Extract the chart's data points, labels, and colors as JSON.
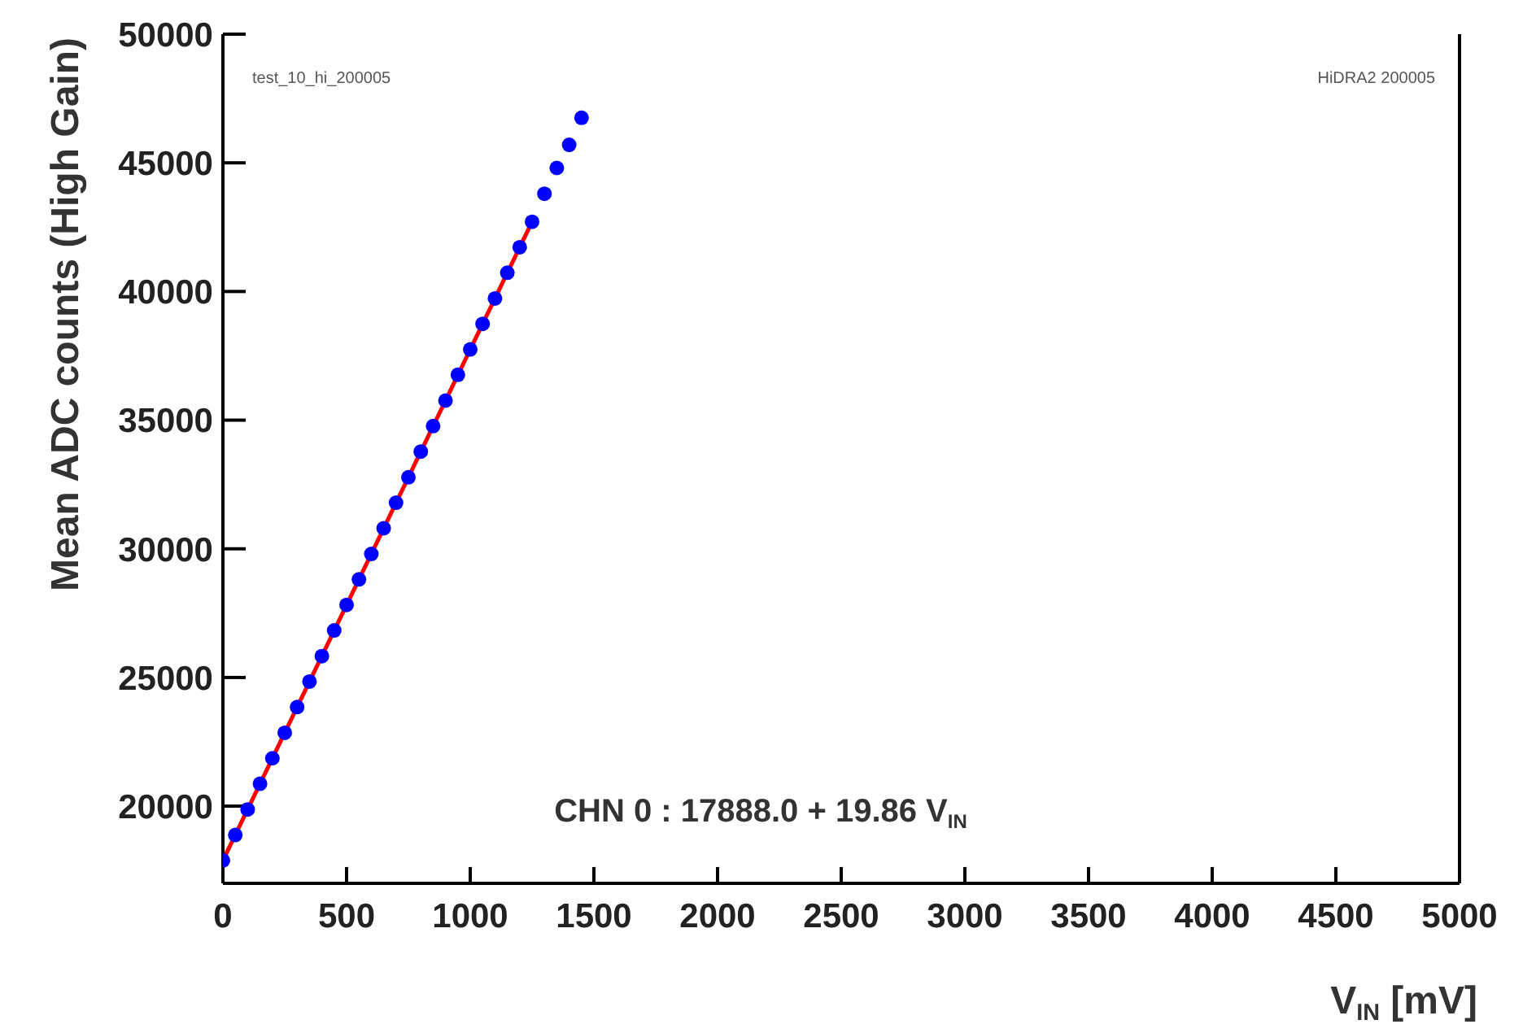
{
  "chart_data": {
    "type": "scatter",
    "xlabel": "V$_{IN}$ [mV]",
    "ylabel": "Mean ADC counts (High Gain)",
    "annotations": [
      "test_10_hi_200005",
      "HiDRA2 200005",
      "CHN 0 : 17888.0 + 19.86 V$_{IN}$"
    ],
    "xlim": [
      0,
      5000
    ],
    "xticks": [
      0,
      500,
      1000,
      1500,
      2000,
      2500,
      3000,
      3500,
      4000,
      4500,
      5000
    ],
    "ylim": [
      17000,
      50000
    ],
    "yticks": [
      20000,
      25000,
      30000,
      35000,
      40000,
      45000,
      50000
    ],
    "series": [
      {
        "color": "#0000ff",
        "marker": "circle",
        "x": [
          0,
          50,
          100,
          150,
          200,
          250,
          300,
          350,
          400,
          450,
          500,
          550,
          600,
          650,
          700,
          750,
          800,
          850,
          900,
          950,
          1000,
          1050,
          1100,
          1150,
          1200,
          1250,
          1300,
          1350,
          1400,
          1450
        ],
        "values": [
          17890,
          18880,
          19870,
          20870,
          21860,
          22850,
          23850,
          24840,
          25830,
          26830,
          27820,
          28810,
          29800,
          30800,
          31790,
          32780,
          33780,
          34770,
          35760,
          36760,
          37750,
          38740,
          39730,
          40730,
          41720,
          42710,
          43800,
          44800,
          45700,
          46750
        ]
      },
      {
        "type": "line",
        "color": "#ff0000",
        "line_style": "solid",
        "x": [
          0,
          1250
        ],
        "values": [
          17890,
          42710
        ]
      }
    ]
  }
}
